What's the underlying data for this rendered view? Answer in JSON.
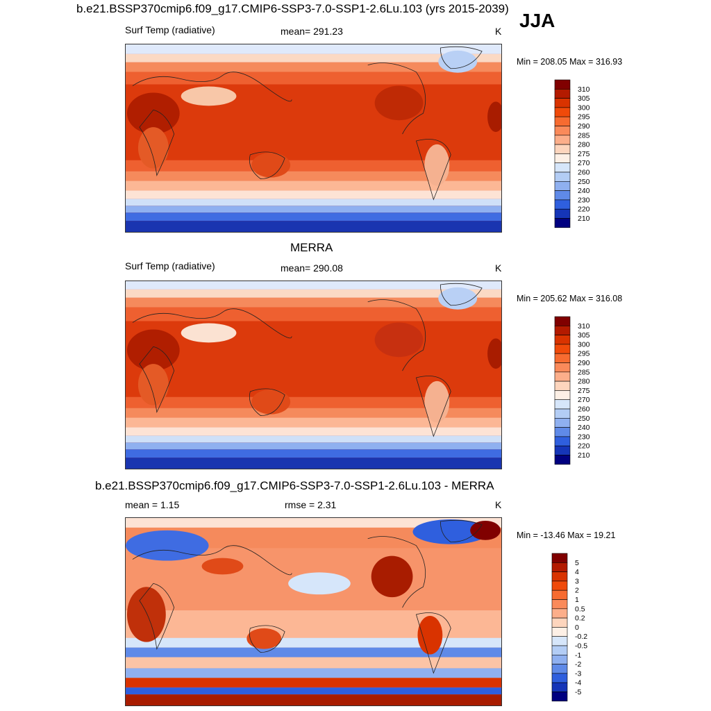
{
  "season": "JJA",
  "units": "K",
  "panels": {
    "model": {
      "title": "b.e21.BSSP370cmip6.f09_g17.CMIP6-SSP3-7.0-SSP1-2.6Lu.103 (yrs 2015-2039)",
      "variable": "Surf Temp (radiative)",
      "mean": "mean= 291.23",
      "units": "K",
      "minmax": "Min = 208.05 Max = 316.93"
    },
    "obs": {
      "title": "MERRA",
      "variable": "Surf Temp (radiative)",
      "mean": "mean= 290.08",
      "units": "K",
      "minmax": "Min = 205.62 Max = 316.08"
    },
    "diff": {
      "title": "b.e21.BSSP370cmip6.f09_g17.CMIP6-SSP3-7.0-SSP1-2.6Lu.103 - MERRA",
      "mean": "mean =   1.15",
      "rmse": "rmse =   2.31",
      "units": "K",
      "minmax": "Min = -13.46 Max =  19.21"
    }
  },
  "colorbars": {
    "temp": {
      "labels": [
        "310",
        "305",
        "300",
        "295",
        "290",
        "285",
        "280",
        "275",
        "270",
        "260",
        "250",
        "240",
        "230",
        "220",
        "210"
      ],
      "colors": [
        "#800000",
        "#b31a00",
        "#d93300",
        "#f04a0a",
        "#f76b30",
        "#fa8a5a",
        "#fcae8a",
        "#fdd5bd",
        "#fdf0e6",
        "#d6e6fa",
        "#b3cdf5",
        "#8fb0f0",
        "#5f8ae8",
        "#2f5fde",
        "#1535b8",
        "#000080"
      ]
    },
    "diff": {
      "labels": [
        "5",
        "4",
        "3",
        "2",
        "1",
        "0.5",
        "0.2",
        "0",
        "-0.2",
        "-0.5",
        "-1",
        "-2",
        "-3",
        "-4",
        "-5"
      ],
      "colors": [
        "#800000",
        "#b31a00",
        "#d93300",
        "#f04a0a",
        "#f76b30",
        "#fa8a5a",
        "#fcae8a",
        "#fdd5bd",
        "#fdf0e6",
        "#d6e6fa",
        "#b3cdf5",
        "#8fb0f0",
        "#5f8ae8",
        "#2f5fde",
        "#1535b8",
        "#000080"
      ]
    }
  }
}
